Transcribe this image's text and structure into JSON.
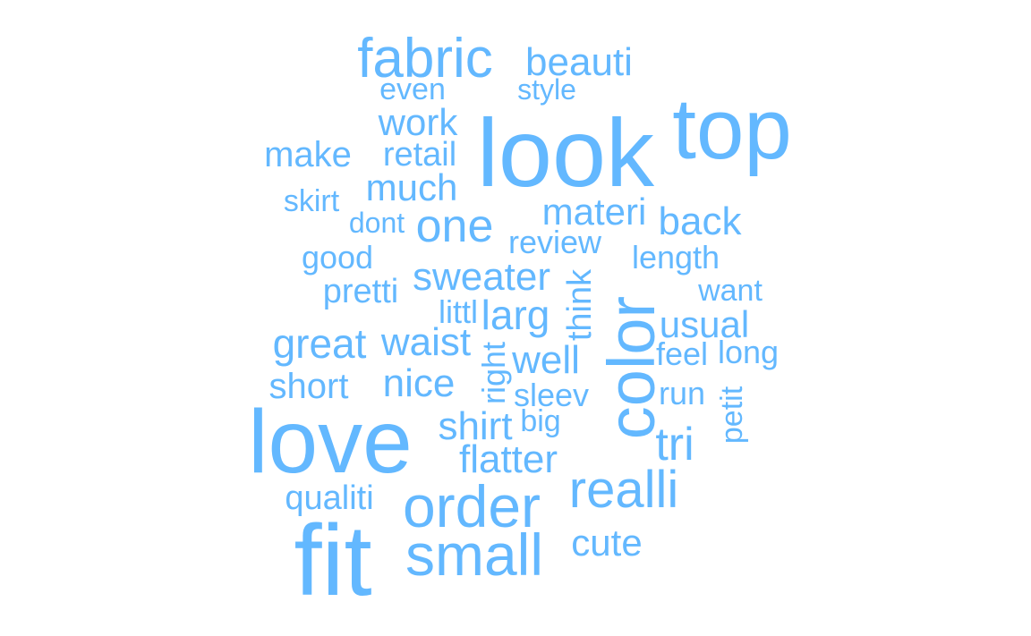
{
  "word_color": "#63B8FF",
  "words": [
    {
      "text": "fabric"
    },
    {
      "text": "beauti"
    },
    {
      "text": "even"
    },
    {
      "text": "style"
    },
    {
      "text": "work"
    },
    {
      "text": "look"
    },
    {
      "text": "top"
    },
    {
      "text": "make"
    },
    {
      "text": "retail"
    },
    {
      "text": "much"
    },
    {
      "text": "skirt"
    },
    {
      "text": "dont"
    },
    {
      "text": "one"
    },
    {
      "text": "materi"
    },
    {
      "text": "back"
    },
    {
      "text": "review"
    },
    {
      "text": "good"
    },
    {
      "text": "length"
    },
    {
      "text": "sweater"
    },
    {
      "text": "pretti"
    },
    {
      "text": "want"
    },
    {
      "text": "think"
    },
    {
      "text": "color"
    },
    {
      "text": "littl"
    },
    {
      "text": "larg"
    },
    {
      "text": "usual"
    },
    {
      "text": "great"
    },
    {
      "text": "waist"
    },
    {
      "text": "right"
    },
    {
      "text": "well"
    },
    {
      "text": "feel"
    },
    {
      "text": "long"
    },
    {
      "text": "short"
    },
    {
      "text": "nice"
    },
    {
      "text": "sleev"
    },
    {
      "text": "run"
    },
    {
      "text": "petit"
    },
    {
      "text": "love"
    },
    {
      "text": "shirt"
    },
    {
      "text": "big"
    },
    {
      "text": "tri"
    },
    {
      "text": "flatter"
    },
    {
      "text": "realli"
    },
    {
      "text": "qualiti"
    },
    {
      "text": "order"
    },
    {
      "text": "fit"
    },
    {
      "text": "small"
    },
    {
      "text": "cute"
    }
  ]
}
